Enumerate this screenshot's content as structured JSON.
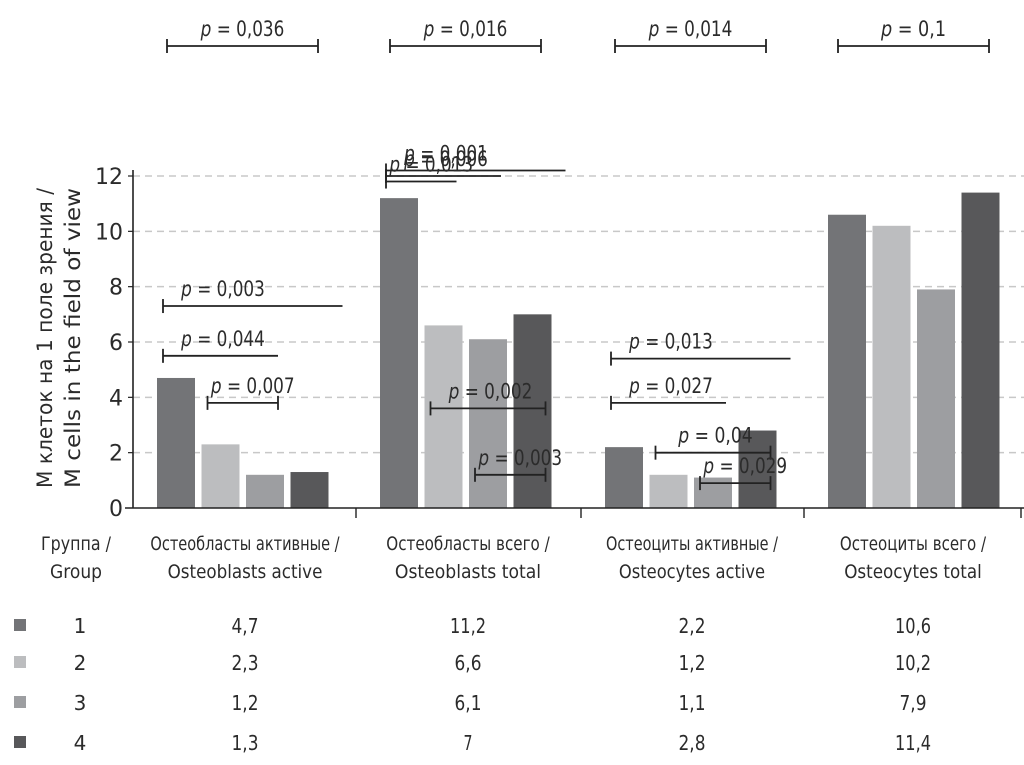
{
  "chart_data": {
    "type": "bar",
    "ylabel_lines": [
      "M клеток на 1 поле зрения /",
      "M cells in the field of view"
    ],
    "ylim": [
      0,
      12
    ],
    "yticks": [
      "0",
      "2",
      "4",
      "6",
      "8",
      "10",
      "12"
    ],
    "grid": true,
    "group_header": [
      "Группа /",
      "Group"
    ],
    "categories": [
      [
        "Остеобласты активные /",
        "Osteoblasts active"
      ],
      [
        "Остеобласты всего /",
        "Osteoblasts total"
      ],
      [
        "Остеоциты активные /",
        "Osteocytes active"
      ],
      [
        "Остеоциты всего /",
        "Osteocytes total"
      ]
    ],
    "series": [
      {
        "name": "1",
        "color": "#737477",
        "values": [
          4.7,
          11.2,
          2.2,
          10.6
        ],
        "labels": [
          "4,7",
          "11,2",
          "2,2",
          "10,6"
        ]
      },
      {
        "name": "2",
        "color": "#bcbdbf",
        "values": [
          2.3,
          6.6,
          1.2,
          10.2
        ],
        "labels": [
          "2,3",
          "6,6",
          "1,2",
          "10,2"
        ]
      },
      {
        "name": "3",
        "color": "#9d9ea1",
        "values": [
          1.2,
          6.1,
          1.1,
          7.9
        ],
        "labels": [
          "1,2",
          "6,1",
          "1,1",
          "7,9"
        ]
      },
      {
        "name": "4",
        "color": "#58585a",
        "values": [
          1.3,
          7,
          2.8,
          11.4
        ],
        "labels": [
          "1,3",
          "7",
          "2,8",
          "11,4"
        ]
      }
    ],
    "annotations": [
      {
        "category": 0,
        "from": 1,
        "to": 4,
        "label": "= 0,036",
        "level": "top"
      },
      {
        "category": 1,
        "from": 1,
        "to": 4,
        "label": "= 0,016",
        "level": "top"
      },
      {
        "category": 2,
        "from": 1,
        "to": 4,
        "label": "= 0,014",
        "level": "top"
      },
      {
        "category": 3,
        "from": 1,
        "to": 4,
        "label": "= 0,1",
        "level": "top"
      },
      {
        "category": 1,
        "from": 1,
        "to": 4,
        "label": "= 0,001",
        "y": 12.2
      },
      {
        "category": 1,
        "from": 1,
        "to": 3,
        "label": "= 0,006",
        "y": 12.0
      },
      {
        "category": 1,
        "from": 1,
        "to": 2,
        "label": "= 0,013",
        "y": 11.8
      },
      {
        "category": 0,
        "from": 1,
        "to": 4,
        "label": "= 0,003",
        "y": 7.3
      },
      {
        "category": 0,
        "from": 1,
        "to": 3,
        "label": "= 0,044",
        "y": 5.5
      },
      {
        "category": 0,
        "from": 2,
        "to": 3,
        "label": "= 0,007",
        "y": 3.8
      },
      {
        "category": 1,
        "from": 2,
        "to": 4,
        "label": "= 0,002",
        "y": 3.6
      },
      {
        "category": 1,
        "from": 3,
        "to": 4,
        "label": "= 0,003",
        "y": 1.2
      },
      {
        "category": 2,
        "from": 1,
        "to": 4,
        "label": "= 0,013",
        "y": 5.4
      },
      {
        "category": 2,
        "from": 1,
        "to": 3,
        "label": "= 0,027",
        "y": 3.8
      },
      {
        "category": 2,
        "from": 2,
        "to": 4,
        "label": "= 0,04",
        "y": 2.0
      },
      {
        "category": 2,
        "from": 3,
        "to": 4,
        "label": "= 0,029",
        "y": 0.9
      }
    ],
    "p_symbol": "p"
  }
}
